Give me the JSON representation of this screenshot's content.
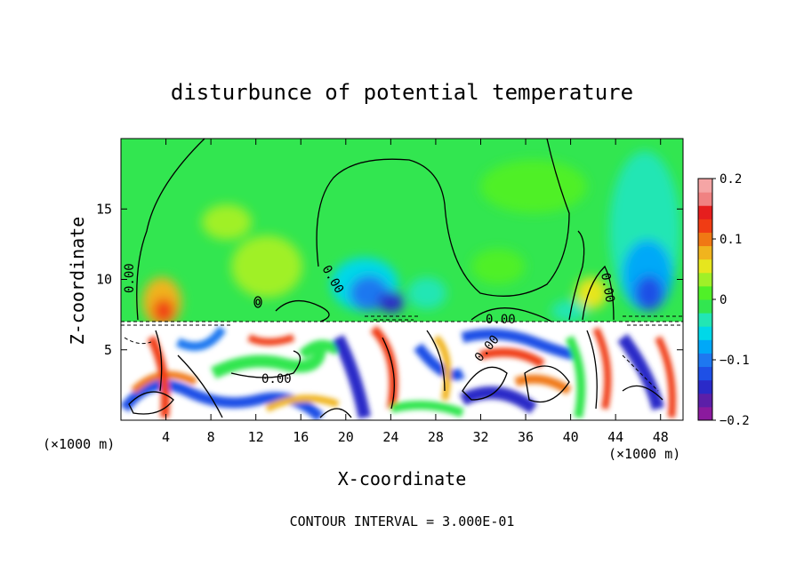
{
  "chart_data": {
    "type": "heatmap",
    "title": "disturbunce of potential temperature",
    "xlabel": "X-coordinate",
    "ylabel": "Z-coordinate",
    "x_scale_note": "(×1000 m)",
    "x_ticks": [
      4,
      8,
      12,
      16,
      20,
      24,
      28,
      32,
      36,
      40,
      44,
      48
    ],
    "y_ticks": [
      5,
      10,
      15
    ],
    "xlim": [
      0,
      50
    ],
    "ylim": [
      0,
      20
    ],
    "colorbar": {
      "min": -0.2,
      "max": 0.2,
      "tick_values": [
        0.2,
        0.1,
        0,
        -0.1,
        -0.2
      ],
      "tick_labels": [
        "0.2",
        "0.1",
        "0",
        "−0.1",
        "−0.2"
      ],
      "colors": [
        "#8B1A9E",
        "#5C1FA8",
        "#2A2AC8",
        "#1E50E6",
        "#1E78F0",
        "#00A8F8",
        "#00D8E8",
        "#22E6B4",
        "#32E650",
        "#50F028",
        "#A0F028",
        "#E6E61E",
        "#F0B41E",
        "#F07814",
        "#F03C14",
        "#E61E1E",
        "#F08282",
        "#F5A5A5"
      ]
    },
    "contour_labels": [
      "0.00",
      "0.00",
      "0.00",
      "0.00",
      "0.00",
      "0.00"
    ],
    "footer": "CONTOUR INTERVAL = 3.000E-01",
    "annotation": "(×1000 m)"
  }
}
